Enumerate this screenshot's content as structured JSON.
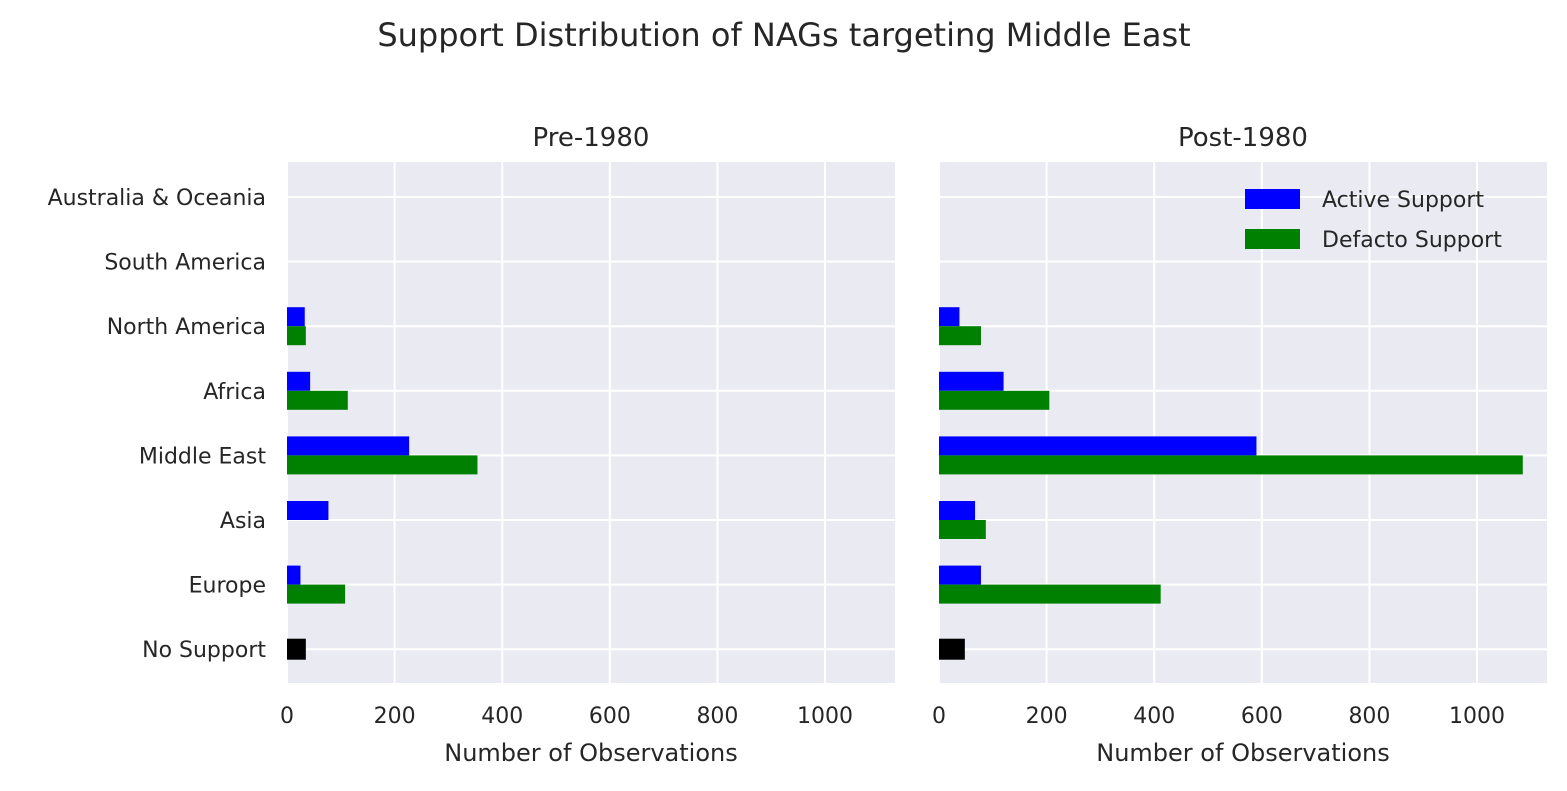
{
  "chart_data": {
    "type": "bar",
    "orientation": "horizontal",
    "title": "Support Distribution of NAGs targeting Middle East",
    "categories": [
      "Australia & Oceania",
      "South America",
      "North America",
      "Africa",
      "Middle East",
      "Asia",
      "Europe",
      "No Support"
    ],
    "xlabel": "Number of Observations",
    "xlim": [
      0,
      1130
    ],
    "xticks": [
      0,
      200,
      400,
      600,
      800,
      1000
    ],
    "grid": true,
    "legend": {
      "placement": "top-right",
      "entries": [
        {
          "label": "Active Support",
          "color": "#0000ff"
        },
        {
          "label": "Defacto Support",
          "color": "#008000"
        }
      ]
    },
    "colors": {
      "active": "#0000ff",
      "defacto": "#008000",
      "no_support": "#000000",
      "background": "#eaeaf2",
      "grid": "#ffffff"
    },
    "panels": [
      {
        "title": "Pre-1980",
        "active": [
          0,
          0,
          33,
          43,
          227,
          77,
          25,
          null
        ],
        "defacto": [
          0,
          0,
          35,
          113,
          354,
          0,
          108,
          null
        ],
        "no_support": 35
      },
      {
        "title": "Post-1980",
        "active": [
          0,
          0,
          38,
          120,
          590,
          67,
          78,
          null
        ],
        "defacto": [
          0,
          0,
          78,
          205,
          1085,
          87,
          412,
          null
        ],
        "no_support": 48
      }
    ]
  }
}
